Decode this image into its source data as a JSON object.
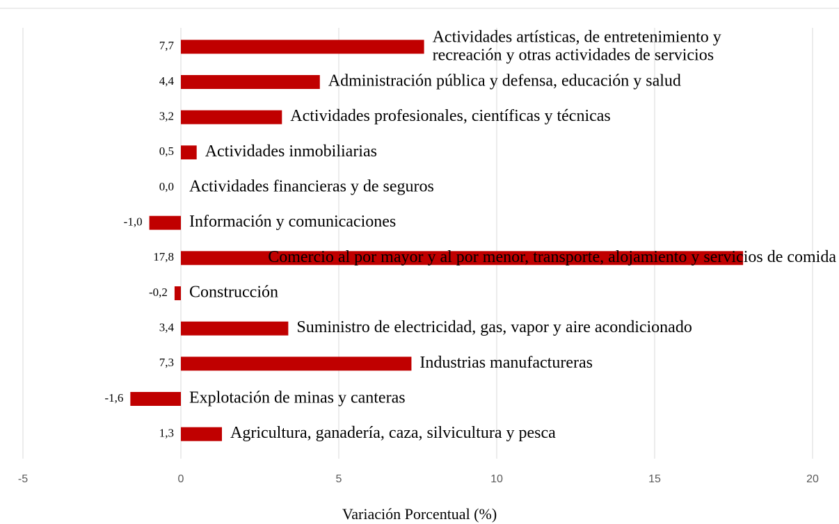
{
  "chart_data": {
    "type": "barh",
    "categories": [
      [
        "Actividades artísticas, de entretenimiento y",
        "recreación y otras actividades de servicios"
      ],
      "Administración pública y defensa, educación y salud",
      "Actividades profesionales, científicas y técnicas",
      "Actividades inmobiliarias",
      "Actividades financieras y de seguros",
      "Información y comunicaciones",
      "Comercio al por mayor y al por menor, transporte, alojamiento y servicios de comida",
      "Construcción",
      "Suministro de electricidad, gas, vapor y aire acondicionado",
      "Industrias manufactureras",
      "Explotación de minas y canteras",
      "Agricultura, ganadería, caza, silvicultura y pesca"
    ],
    "values": [
      7.7,
      4.4,
      3.2,
      0.5,
      0.0,
      -1.0,
      17.8,
      -0.2,
      3.4,
      7.3,
      -1.6,
      1.3
    ],
    "value_labels": [
      "7,7",
      "4,4",
      "3,2",
      "0,5",
      "0,0",
      "-1,0",
      "17,8",
      "-0,2",
      "3,4",
      "7,3",
      "-1,6",
      "1,3"
    ],
    "color": "#c00000",
    "xlabel": "Variación Porcentual (%)",
    "xlim": [
      -5,
      20
    ],
    "xticks": [
      -5,
      0,
      5,
      10,
      15,
      20
    ],
    "grid": true
  }
}
